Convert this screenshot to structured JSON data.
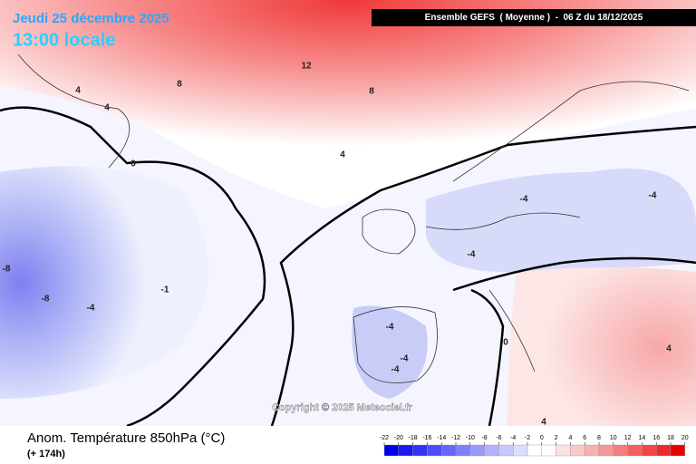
{
  "header": {
    "date": "Jeudi 25 décembre 2025",
    "time": "13:00 locale",
    "model": "Ensemble GEFS  ( Moyenne )  -  06 Z du 18/12/2025"
  },
  "map": {
    "copyright": "Copyright © 2025 Meteociel.fr",
    "contour_labels": [
      12,
      8,
      8,
      4,
      4,
      4,
      0,
      -4,
      -4,
      -4,
      -8,
      -8,
      -4,
      -1,
      -4,
      -4,
      0,
      -4,
      4,
      4
    ]
  },
  "footer": {
    "title": "Anom. Température 850hPa (°C)",
    "lead": "(+ 174h)"
  },
  "colorbar": {
    "ticks": [
      -22,
      -20,
      -18,
      -16,
      -14,
      -12,
      -10,
      -8,
      -6,
      -4,
      -2,
      0,
      2,
      4,
      6,
      8,
      10,
      12,
      14,
      16,
      18,
      20
    ],
    "colors": [
      "#0000e6",
      "#1a1af0",
      "#3333f5",
      "#4d4df7",
      "#6666f8",
      "#7f7ff9",
      "#9999fa",
      "#b3b3fb",
      "#c8c8fc",
      "#dcdcfd",
      "#ffffff",
      "#ffffff",
      "#fde0e0",
      "#fbc8c8",
      "#f9b0b0",
      "#f79696",
      "#f57c7c",
      "#f36262",
      "#f04646",
      "#ee2a2a",
      "#e60000"
    ]
  }
}
